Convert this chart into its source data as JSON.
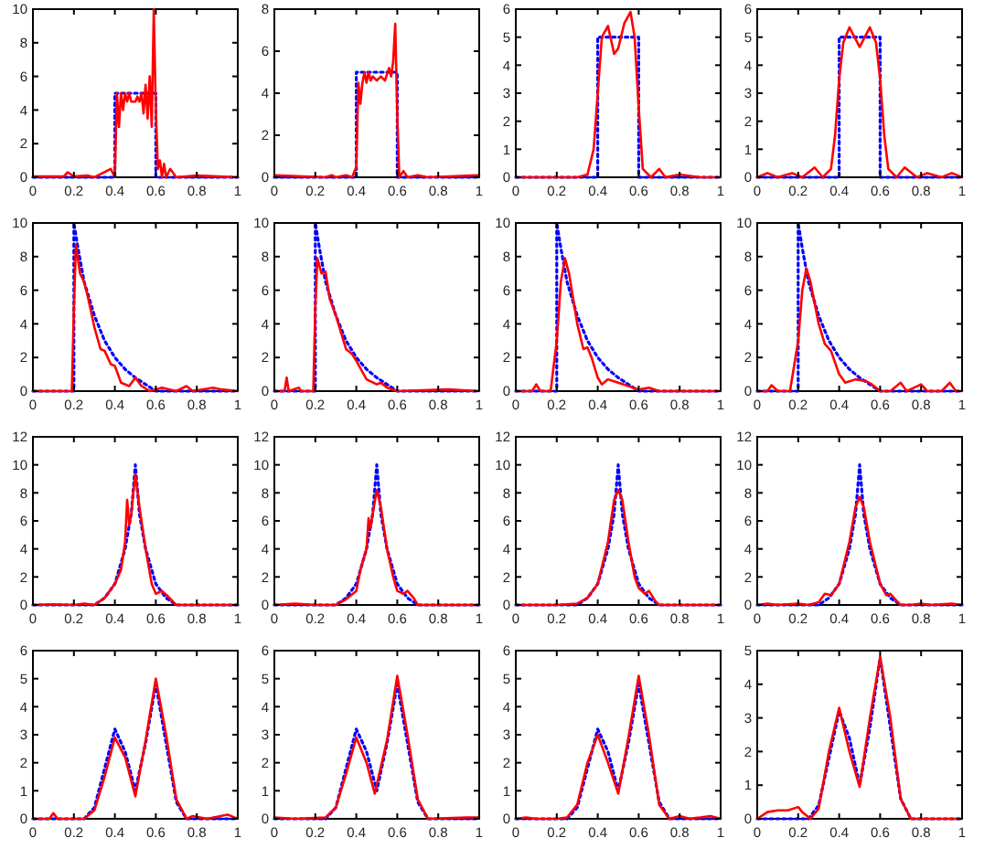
{
  "chart_data": [
    {
      "type": "line",
      "xlim": [
        0,
        1
      ],
      "xticks": [
        0,
        0.2,
        0.4,
        0.6,
        0.8,
        1
      ],
      "ylim": [
        0,
        10
      ],
      "yticks": [
        0,
        2,
        4,
        6,
        8,
        10
      ],
      "series": [
        {
          "color": "#0000ff",
          "line_style": "dotted",
          "x": [
            0,
            0.4,
            0.4,
            0.6,
            0.6,
            1
          ],
          "values": [
            0,
            0,
            5,
            5,
            0,
            0
          ]
        },
        {
          "color": "#ff0000",
          "line_style": "solid",
          "x": [
            0,
            0.15,
            0.17,
            0.2,
            0.27,
            0.3,
            0.38,
            0.4,
            0.41,
            0.42,
            0.43,
            0.44,
            0.45,
            0.46,
            0.47,
            0.48,
            0.5,
            0.51,
            0.52,
            0.53,
            0.54,
            0.55,
            0.56,
            0.57,
            0.58,
            0.59,
            0.6,
            0.61,
            0.62,
            0.63,
            0.64,
            0.65,
            0.67,
            0.7,
            0.8,
            1
          ],
          "values": [
            0.05,
            0.05,
            0.3,
            0.05,
            0.1,
            0,
            0.5,
            0,
            5,
            3,
            5,
            4,
            5,
            4.5,
            5,
            4.5,
            4.5,
            4.8,
            4.5,
            5,
            3.8,
            5.5,
            3.5,
            6,
            3,
            10,
            4,
            0.5,
            1,
            0,
            0.8,
            0,
            0.5,
            0,
            0.1,
            0
          ]
        }
      ]
    },
    {
      "type": "line",
      "xlim": [
        0,
        1
      ],
      "xticks": [
        0,
        0.2,
        0.4,
        0.6,
        0.8,
        1
      ],
      "ylim": [
        0,
        8
      ],
      "yticks": [
        0,
        2,
        4,
        6,
        8
      ],
      "series": [
        {
          "color": "#0000ff",
          "line_style": "dotted",
          "x": [
            0,
            0.4,
            0.4,
            0.6,
            0.6,
            1
          ],
          "values": [
            0,
            0,
            5,
            5,
            0,
            0
          ]
        },
        {
          "color": "#ff0000",
          "line_style": "solid",
          "x": [
            0,
            0.25,
            0.28,
            0.3,
            0.35,
            0.38,
            0.4,
            0.41,
            0.42,
            0.43,
            0.44,
            0.45,
            0.46,
            0.47,
            0.48,
            0.5,
            0.52,
            0.54,
            0.56,
            0.57,
            0.58,
            0.59,
            0.6,
            0.61,
            0.63,
            0.65,
            0.7,
            0.75,
            1
          ],
          "values": [
            0.1,
            0,
            0.1,
            0,
            0.1,
            0,
            0.5,
            4.5,
            3.5,
            4.5,
            5,
            4.5,
            5,
            4.6,
            4.8,
            4.6,
            4.8,
            4.6,
            5.2,
            4.8,
            5.5,
            7.3,
            3,
            0,
            0.3,
            0,
            0.1,
            0,
            0.1
          ]
        }
      ]
    },
    {
      "type": "line",
      "xlim": [
        0,
        1
      ],
      "xticks": [
        0,
        0.2,
        0.4,
        0.6,
        0.8,
        1
      ],
      "ylim": [
        0,
        6
      ],
      "yticks": [
        0,
        1,
        2,
        3,
        4,
        5,
        6
      ],
      "series": [
        {
          "color": "#0000ff",
          "line_style": "dotted",
          "x": [
            0,
            0.4,
            0.4,
            0.6,
            0.6,
            1
          ],
          "values": [
            0,
            0,
            5,
            5,
            0,
            0
          ]
        },
        {
          "color": "#ff0000",
          "line_style": "solid",
          "x": [
            0,
            0.3,
            0.35,
            0.38,
            0.4,
            0.42,
            0.45,
            0.48,
            0.5,
            0.53,
            0.56,
            0.58,
            0.6,
            0.62,
            0.66,
            0.7,
            0.73,
            0.8,
            0.9,
            1
          ],
          "values": [
            0,
            0,
            0.1,
            1,
            3,
            5,
            5.4,
            4.4,
            4.6,
            5.5,
            5.9,
            5,
            2.5,
            0.3,
            0,
            0.3,
            0,
            0.1,
            0,
            0
          ]
        }
      ]
    },
    {
      "type": "line",
      "xlim": [
        0,
        1
      ],
      "xticks": [
        0,
        0.2,
        0.4,
        0.6,
        0.8,
        1
      ],
      "ylim": [
        0,
        6
      ],
      "yticks": [
        0,
        1,
        2,
        3,
        4,
        5,
        6
      ],
      "series": [
        {
          "color": "#0000ff",
          "line_style": "dotted",
          "x": [
            0,
            0.4,
            0.4,
            0.6,
            0.6,
            1
          ],
          "values": [
            0,
            0,
            5,
            5,
            0,
            0
          ]
        },
        {
          "color": "#ff0000",
          "line_style": "solid",
          "x": [
            0,
            0.05,
            0.1,
            0.17,
            0.22,
            0.28,
            0.32,
            0.36,
            0.38,
            0.4,
            0.42,
            0.45,
            0.5,
            0.55,
            0.58,
            0.6,
            0.62,
            0.64,
            0.68,
            0.72,
            0.78,
            0.83,
            0.9,
            0.95,
            1
          ],
          "values": [
            0,
            0.15,
            0,
            0.15,
            0,
            0.35,
            0,
            0.3,
            1.5,
            3.5,
            4.8,
            5.35,
            4.65,
            5.35,
            4.8,
            3.5,
            1.5,
            0.3,
            0,
            0.35,
            0,
            0.15,
            0,
            0.15,
            0
          ]
        }
      ]
    },
    {
      "type": "line",
      "xlim": [
        0,
        1
      ],
      "xticks": [
        0,
        0.2,
        0.4,
        0.6,
        0.8,
        1
      ],
      "ylim": [
        0,
        10
      ],
      "yticks": [
        0,
        2,
        4,
        6,
        8,
        10
      ],
      "series": [
        {
          "color": "#0000ff",
          "line_style": "dotted",
          "x": [
            0,
            0.2,
            0.2,
            0.22,
            0.25,
            0.3,
            0.35,
            0.4,
            0.45,
            0.5,
            0.55,
            0.6,
            1
          ],
          "values": [
            0,
            0,
            10,
            8.5,
            6.5,
            4.5,
            3,
            2,
            1.3,
            0.8,
            0.4,
            0,
            0
          ]
        },
        {
          "color": "#ff0000",
          "line_style": "solid",
          "x": [
            0,
            0.1,
            0.19,
            0.2,
            0.21,
            0.23,
            0.25,
            0.27,
            0.3,
            0.33,
            0.35,
            0.38,
            0.4,
            0.43,
            0.47,
            0.5,
            0.53,
            0.57,
            0.6,
            0.63,
            0.7,
            0.75,
            0.78,
            0.88,
            0.92,
            1
          ],
          "values": [
            0,
            0,
            0,
            5,
            8.7,
            7,
            6.5,
            5.5,
            3.8,
            2.5,
            2.4,
            1.6,
            1.5,
            0.5,
            0.3,
            0.8,
            0.3,
            0,
            0.1,
            0.2,
            0,
            0.3,
            0,
            0.2,
            0.1,
            0
          ]
        }
      ]
    },
    {
      "type": "line",
      "xlim": [
        0,
        1
      ],
      "xticks": [
        0,
        0.2,
        0.4,
        0.6,
        0.8,
        1
      ],
      "ylim": [
        0,
        10
      ],
      "yticks": [
        0,
        2,
        4,
        6,
        8,
        10
      ],
      "series": [
        {
          "color": "#0000ff",
          "line_style": "dotted",
          "x": [
            0,
            0.2,
            0.2,
            0.22,
            0.25,
            0.3,
            0.35,
            0.4,
            0.45,
            0.5,
            0.55,
            0.6,
            1
          ],
          "values": [
            0,
            0,
            10,
            8.5,
            6.5,
            4.5,
            3,
            2,
            1.3,
            0.8,
            0.4,
            0,
            0
          ]
        },
        {
          "color": "#ff0000",
          "line_style": "solid",
          "x": [
            0,
            0.05,
            0.06,
            0.07,
            0.12,
            0.13,
            0.19,
            0.2,
            0.21,
            0.23,
            0.25,
            0.27,
            0.3,
            0.35,
            0.38,
            0.4,
            0.45,
            0.5,
            0.52,
            0.55,
            0.6,
            0.85,
            1
          ],
          "values": [
            0,
            0,
            0.8,
            0,
            0.2,
            0,
            0,
            5,
            7.9,
            7,
            7.1,
            5.5,
            4.5,
            2.5,
            2.2,
            1.8,
            0.7,
            0.4,
            0.5,
            0.2,
            0,
            0.1,
            0
          ]
        }
      ]
    },
    {
      "type": "line",
      "xlim": [
        0,
        1
      ],
      "xticks": [
        0,
        0.2,
        0.4,
        0.6,
        0.8,
        1
      ],
      "ylim": [
        0,
        10
      ],
      "yticks": [
        0,
        2,
        4,
        6,
        8,
        10
      ],
      "series": [
        {
          "color": "#0000ff",
          "line_style": "dotted",
          "x": [
            0,
            0.2,
            0.2,
            0.22,
            0.25,
            0.3,
            0.35,
            0.4,
            0.45,
            0.5,
            0.55,
            0.6,
            1
          ],
          "values": [
            0,
            0,
            10,
            8.5,
            6.5,
            4.5,
            3,
            2,
            1.3,
            0.8,
            0.4,
            0,
            0
          ]
        },
        {
          "color": "#ff0000",
          "line_style": "solid",
          "x": [
            0,
            0.08,
            0.1,
            0.12,
            0.17,
            0.2,
            0.22,
            0.24,
            0.26,
            0.3,
            0.33,
            0.35,
            0.37,
            0.4,
            0.42,
            0.45,
            0.5,
            0.55,
            0.6,
            0.65,
            0.7,
            1
          ],
          "values": [
            0,
            0,
            0.4,
            0,
            0,
            3,
            6.5,
            7.9,
            7,
            4,
            2.5,
            2.6,
            2,
            0.8,
            0.4,
            0.7,
            0.5,
            0.3,
            0.1,
            0.2,
            0,
            0
          ]
        }
      ]
    },
    {
      "type": "line",
      "xlim": [
        0,
        1
      ],
      "xticks": [
        0,
        0.2,
        0.4,
        0.6,
        0.8,
        1
      ],
      "ylim": [
        0,
        10
      ],
      "yticks": [
        0,
        2,
        4,
        6,
        8,
        10
      ],
      "series": [
        {
          "color": "#0000ff",
          "line_style": "dotted",
          "x": [
            0,
            0.2,
            0.2,
            0.22,
            0.25,
            0.3,
            0.35,
            0.4,
            0.45,
            0.5,
            0.55,
            0.6,
            1
          ],
          "values": [
            0,
            0,
            10,
            8.5,
            6.5,
            4.5,
            3,
            2,
            1.3,
            0.8,
            0.4,
            0,
            0
          ]
        },
        {
          "color": "#ff0000",
          "line_style": "solid",
          "x": [
            0,
            0.05,
            0.07,
            0.1,
            0.16,
            0.2,
            0.22,
            0.24,
            0.26,
            0.3,
            0.33,
            0.36,
            0.4,
            0.43,
            0.48,
            0.53,
            0.56,
            0.6,
            0.65,
            0.7,
            0.73,
            0.8,
            0.83,
            0.9,
            0.94,
            0.97,
            1
          ],
          "values": [
            0,
            0,
            0.35,
            0,
            0,
            3,
            6,
            7.3,
            6.5,
            4,
            2.8,
            2.4,
            1,
            0.5,
            0.7,
            0.6,
            0.4,
            0,
            0,
            0.5,
            0,
            0.4,
            0,
            0,
            0.5,
            0,
            0
          ]
        }
      ]
    },
    {
      "type": "line",
      "xlim": [
        0,
        1
      ],
      "xticks": [
        0,
        0.2,
        0.4,
        0.6,
        0.8,
        1
      ],
      "ylim": [
        0,
        12
      ],
      "yticks": [
        0,
        2,
        4,
        6,
        8,
        10,
        12
      ],
      "series": [
        {
          "color": "#0000ff",
          "line_style": "dotted",
          "x": [
            0,
            0.3,
            0.35,
            0.4,
            0.45,
            0.48,
            0.5,
            0.52,
            0.55,
            0.6,
            0.65,
            0.7,
            1
          ],
          "values": [
            0,
            0,
            0.5,
            1.5,
            4,
            6.5,
            10,
            6.5,
            4,
            1.5,
            0.5,
            0,
            0
          ]
        },
        {
          "color": "#ff0000",
          "line_style": "solid",
          "x": [
            0,
            0.1,
            0.2,
            0.25,
            0.3,
            0.35,
            0.4,
            0.43,
            0.45,
            0.46,
            0.47,
            0.48,
            0.49,
            0.5,
            0.52,
            0.55,
            0.58,
            0.6,
            0.63,
            0.66,
            0.7,
            1
          ],
          "values": [
            0,
            0.05,
            0,
            0.1,
            0,
            0.5,
            1.5,
            2.5,
            4.5,
            7.5,
            5.7,
            6.5,
            8,
            9.3,
            7,
            4,
            1.5,
            0.8,
            1,
            0.6,
            0,
            0
          ]
        }
      ]
    },
    {
      "type": "line",
      "xlim": [
        0,
        1
      ],
      "xticks": [
        0,
        0.2,
        0.4,
        0.6,
        0.8,
        1
      ],
      "ylim": [
        0,
        12
      ],
      "yticks": [
        0,
        2,
        4,
        6,
        8,
        10,
        12
      ],
      "series": [
        {
          "color": "#0000ff",
          "line_style": "dotted",
          "x": [
            0,
            0.3,
            0.35,
            0.4,
            0.45,
            0.48,
            0.5,
            0.52,
            0.55,
            0.6,
            0.65,
            0.7,
            1
          ],
          "values": [
            0,
            0,
            0.5,
            1.5,
            4,
            6.5,
            10,
            6.5,
            4,
            1.5,
            0.5,
            0,
            0
          ]
        },
        {
          "color": "#ff0000",
          "line_style": "solid",
          "x": [
            0,
            0.1,
            0.2,
            0.3,
            0.35,
            0.4,
            0.42,
            0.45,
            0.46,
            0.47,
            0.48,
            0.5,
            0.52,
            0.55,
            0.58,
            0.6,
            0.63,
            0.65,
            0.68,
            0.7,
            1
          ],
          "values": [
            0,
            0.1,
            0,
            0,
            0.4,
            1,
            2.5,
            4,
            6.2,
            5.5,
            6.5,
            8.2,
            7,
            4,
            2,
            1,
            0.8,
            1,
            0.5,
            0,
            0
          ]
        }
      ]
    },
    {
      "type": "line",
      "xlim": [
        0,
        1
      ],
      "xticks": [
        0,
        0.2,
        0.4,
        0.6,
        0.8,
        1
      ],
      "ylim": [
        0,
        12
      ],
      "yticks": [
        0,
        2,
        4,
        6,
        8,
        10,
        12
      ],
      "series": [
        {
          "color": "#0000ff",
          "line_style": "dotted",
          "x": [
            0,
            0.3,
            0.35,
            0.4,
            0.45,
            0.48,
            0.5,
            0.52,
            0.55,
            0.6,
            0.65,
            0.7,
            1
          ],
          "values": [
            0,
            0,
            0.5,
            1.5,
            4,
            6.5,
            10,
            6.5,
            4,
            1.5,
            0.5,
            0,
            0
          ]
        },
        {
          "color": "#ff0000",
          "line_style": "solid",
          "x": [
            0,
            0.2,
            0.3,
            0.35,
            0.4,
            0.45,
            0.48,
            0.5,
            0.52,
            0.55,
            0.58,
            0.6,
            0.63,
            0.65,
            0.68,
            0.7,
            1
          ],
          "values": [
            0,
            0,
            0.1,
            0.5,
            1.5,
            4.5,
            7.5,
            8.2,
            7.5,
            4.5,
            2,
            1.2,
            0.8,
            1,
            0.3,
            0,
            0
          ]
        }
      ]
    },
    {
      "type": "line",
      "xlim": [
        0,
        1
      ],
      "xticks": [
        0,
        0.2,
        0.4,
        0.6,
        0.8,
        1
      ],
      "ylim": [
        0,
        12
      ],
      "yticks": [
        0,
        2,
        4,
        6,
        8,
        10,
        12
      ],
      "series": [
        {
          "color": "#0000ff",
          "line_style": "dotted",
          "x": [
            0,
            0.3,
            0.35,
            0.4,
            0.45,
            0.48,
            0.5,
            0.52,
            0.55,
            0.6,
            0.65,
            0.7,
            1
          ],
          "values": [
            0,
            0,
            0.5,
            1.5,
            4,
            6.5,
            10,
            6.5,
            4,
            1.5,
            0.5,
            0,
            0
          ]
        },
        {
          "color": "#ff0000",
          "line_style": "solid",
          "x": [
            0,
            0.05,
            0.1,
            0.2,
            0.25,
            0.3,
            0.33,
            0.36,
            0.4,
            0.45,
            0.48,
            0.5,
            0.52,
            0.55,
            0.6,
            0.63,
            0.65,
            0.68,
            0.7,
            0.75,
            0.8,
            0.85,
            0.95,
            1
          ],
          "values": [
            0,
            0.1,
            0,
            0.1,
            0,
            0.2,
            0.8,
            0.7,
            1.5,
            4.5,
            7,
            7.7,
            7,
            4.5,
            1.5,
            0.7,
            0.8,
            0.3,
            0,
            0,
            0.1,
            0,
            0.1,
            0
          ]
        }
      ]
    },
    {
      "type": "line",
      "xlim": [
        0,
        1
      ],
      "xticks": [
        0,
        0.2,
        0.4,
        0.6,
        0.8,
        1
      ],
      "ylim": [
        0,
        6
      ],
      "yticks": [
        0,
        1,
        2,
        3,
        4,
        5,
        6
      ],
      "series": [
        {
          "color": "#0000ff",
          "line_style": "dotted",
          "x": [
            0,
            0.25,
            0.3,
            0.35,
            0.4,
            0.45,
            0.5,
            0.55,
            0.6,
            0.65,
            0.7,
            0.75,
            1
          ],
          "values": [
            0,
            0,
            0.4,
            1.8,
            3.2,
            2.4,
            1,
            2.7,
            4.8,
            2.7,
            0.6,
            0,
            0
          ]
        },
        {
          "color": "#ff0000",
          "line_style": "solid",
          "x": [
            0,
            0.08,
            0.1,
            0.12,
            0.25,
            0.3,
            0.35,
            0.4,
            0.45,
            0.5,
            0.55,
            0.6,
            0.65,
            0.7,
            0.75,
            0.78,
            0.85,
            0.95,
            1
          ],
          "values": [
            0,
            0,
            0.2,
            0,
            0,
            0.3,
            1.5,
            2.9,
            2.2,
            0.8,
            2.8,
            5,
            3,
            0.7,
            0,
            0.1,
            0,
            0.15,
            0
          ]
        }
      ]
    },
    {
      "type": "line",
      "xlim": [
        0,
        1
      ],
      "xticks": [
        0,
        0.2,
        0.4,
        0.6,
        0.8,
        1
      ],
      "ylim": [
        0,
        6
      ],
      "yticks": [
        0,
        1,
        2,
        3,
        4,
        5,
        6
      ],
      "series": [
        {
          "color": "#0000ff",
          "line_style": "dotted",
          "x": [
            0,
            0.25,
            0.3,
            0.35,
            0.4,
            0.45,
            0.5,
            0.55,
            0.6,
            0.65,
            0.7,
            0.75,
            1
          ],
          "values": [
            0,
            0,
            0.4,
            1.8,
            3.2,
            2.4,
            1,
            2.7,
            4.8,
            2.7,
            0.6,
            0,
            0
          ]
        },
        {
          "color": "#ff0000",
          "line_style": "solid",
          "x": [
            0,
            0.1,
            0.25,
            0.3,
            0.35,
            0.4,
            0.45,
            0.49,
            0.55,
            0.6,
            0.65,
            0.7,
            0.75,
            0.95,
            1
          ],
          "values": [
            0.05,
            0,
            0.05,
            0.4,
            1.6,
            2.9,
            2,
            0.9,
            2.8,
            5.1,
            3,
            0.7,
            0,
            0.05,
            0.05
          ]
        }
      ]
    },
    {
      "type": "line",
      "xlim": [
        0,
        1
      ],
      "xticks": [
        0,
        0.2,
        0.4,
        0.6,
        0.8,
        1
      ],
      "ylim": [
        0,
        6
      ],
      "yticks": [
        0,
        1,
        2,
        3,
        4,
        5,
        6
      ],
      "series": [
        {
          "color": "#0000ff",
          "line_style": "dotted",
          "x": [
            0,
            0.25,
            0.3,
            0.35,
            0.4,
            0.45,
            0.5,
            0.55,
            0.6,
            0.65,
            0.7,
            0.75,
            1
          ],
          "values": [
            0,
            0,
            0.4,
            1.8,
            3.2,
            2.4,
            1,
            2.7,
            4.8,
            2.7,
            0.6,
            0,
            0
          ]
        },
        {
          "color": "#ff0000",
          "line_style": "solid",
          "x": [
            0,
            0.05,
            0.1,
            0.2,
            0.25,
            0.3,
            0.35,
            0.4,
            0.45,
            0.5,
            0.55,
            0.6,
            0.65,
            0.7,
            0.75,
            0.8,
            0.85,
            0.95,
            1
          ],
          "values": [
            0,
            0.05,
            0,
            0,
            0.05,
            0.5,
            2,
            3,
            2,
            0.9,
            2.9,
            5.1,
            3,
            0.5,
            0,
            0.1,
            0,
            0.1,
            0
          ]
        }
      ]
    },
    {
      "type": "line",
      "xlim": [
        0,
        1
      ],
      "xticks": [
        0,
        0.2,
        0.4,
        0.6,
        0.8,
        1
      ],
      "ylim": [
        0,
        5
      ],
      "yticks": [
        0,
        1,
        2,
        3,
        4,
        5
      ],
      "series": [
        {
          "color": "#0000ff",
          "line_style": "dotted",
          "x": [
            0,
            0.25,
            0.3,
            0.35,
            0.4,
            0.45,
            0.5,
            0.55,
            0.6,
            0.65,
            0.7,
            0.75,
            1
          ],
          "values": [
            0,
            0,
            0.4,
            1.8,
            3.2,
            2.4,
            1,
            2.7,
            4.8,
            2.7,
            0.6,
            0,
            0
          ]
        },
        {
          "color": "#ff0000",
          "line_style": "solid",
          "x": [
            0,
            0.05,
            0.1,
            0.15,
            0.2,
            0.22,
            0.26,
            0.3,
            0.35,
            0.4,
            0.45,
            0.5,
            0.55,
            0.6,
            0.65,
            0.7,
            0.75,
            1
          ],
          "values": [
            0,
            0.2,
            0.25,
            0.25,
            0.35,
            0.2,
            0,
            0.3,
            2,
            3.3,
            2,
            0.95,
            3,
            4.8,
            3,
            0.6,
            0,
            0
          ]
        }
      ]
    }
  ]
}
